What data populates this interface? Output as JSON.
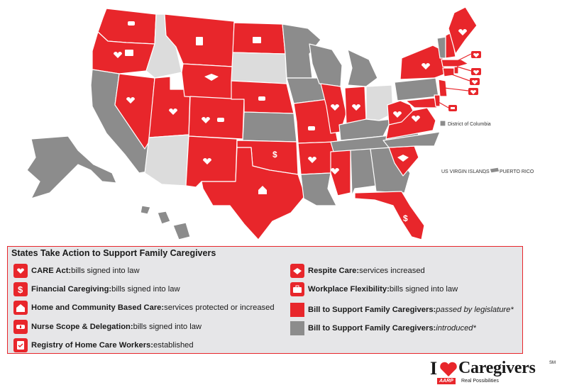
{
  "map": {
    "labels": {
      "dc": "District of Columbia",
      "usvi": "US VIRGIN ISLANDS",
      "pr": "PUERTO RICO"
    }
  },
  "legend": {
    "title": "States Take Action to Support Family Caregivers",
    "items": [
      {
        "bold": "CARE Act:",
        "text": " bills signed into law",
        "icon": "heart-hand-icon"
      },
      {
        "bold": "Financial Caregiving:",
        "text": " bills signed into law",
        "icon": "dollar-sign-icon"
      },
      {
        "bold": "Home and Community Based Care:",
        "text": " services protected or increased",
        "icon": "house-icon"
      },
      {
        "bold": "Nurse Scope & Delegation:",
        "text": " bills signed into law",
        "icon": "nurse-cap-icon"
      },
      {
        "bold": "Registry of Home Care Workers:",
        "text": " established",
        "icon": "clipboard-icon"
      },
      {
        "bold": "Respite Care:",
        "text": " services increased",
        "icon": "handshake-icon"
      },
      {
        "bold": "Workplace Flexibility:",
        "text": " bills signed into law",
        "icon": "briefcase-icon"
      },
      {
        "bold": "Bill to Support Family Caregivers:",
        "italic": " passed by legislature*",
        "swatch": "#e8262b"
      },
      {
        "bold": "Bill to Support Family Caregivers:",
        "italic": " introduced*",
        "swatch": "#8c8c8c"
      }
    ]
  },
  "brand": {
    "i": "I",
    "word": "Caregivers",
    "tm": "SM",
    "aarp": "AARP",
    "tagline": "Real Possibilities"
  },
  "colors": {
    "passed": "#e8262b",
    "introduced": "#8c8c8c",
    "none": "#dcdcdc"
  }
}
